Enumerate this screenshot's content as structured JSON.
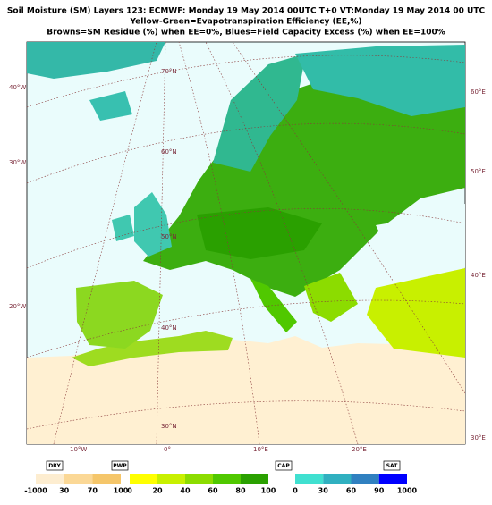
{
  "header": {
    "lines": [
      "Soil Moisture (SM) Layers 123: ECMWF: Monday 19 May 2014 00UTC  T+0  VT:Monday  19 May 2014  00 UTC",
      "Yellow-Green=Evapotranspiration Efficiency (EE,%)",
      "Browns=SM Residue (%) when EE=0%, Blues=Field Capacity Excess (%) when EE=100%"
    ]
  },
  "map": {
    "labels": [
      "40°W",
      "30°W",
      "20°W",
      "70°N",
      "60°N",
      "50°N",
      "40°N",
      "30°N",
      "10°W",
      "0°",
      "10°E",
      "20°E",
      "60°E",
      "50°E",
      "40°E",
      "30°E"
    ]
  },
  "legend": {
    "markers": [
      "DRY",
      "PWP",
      "CAP",
      "SAT"
    ],
    "scales": [
      {
        "ticks": [
          -1000,
          30,
          70,
          100
        ]
      },
      {
        "ticks": [
          0,
          20,
          40,
          60,
          80,
          100
        ]
      },
      {
        "ticks": [
          0,
          30,
          60,
          90,
          1000
        ]
      }
    ]
  }
}
